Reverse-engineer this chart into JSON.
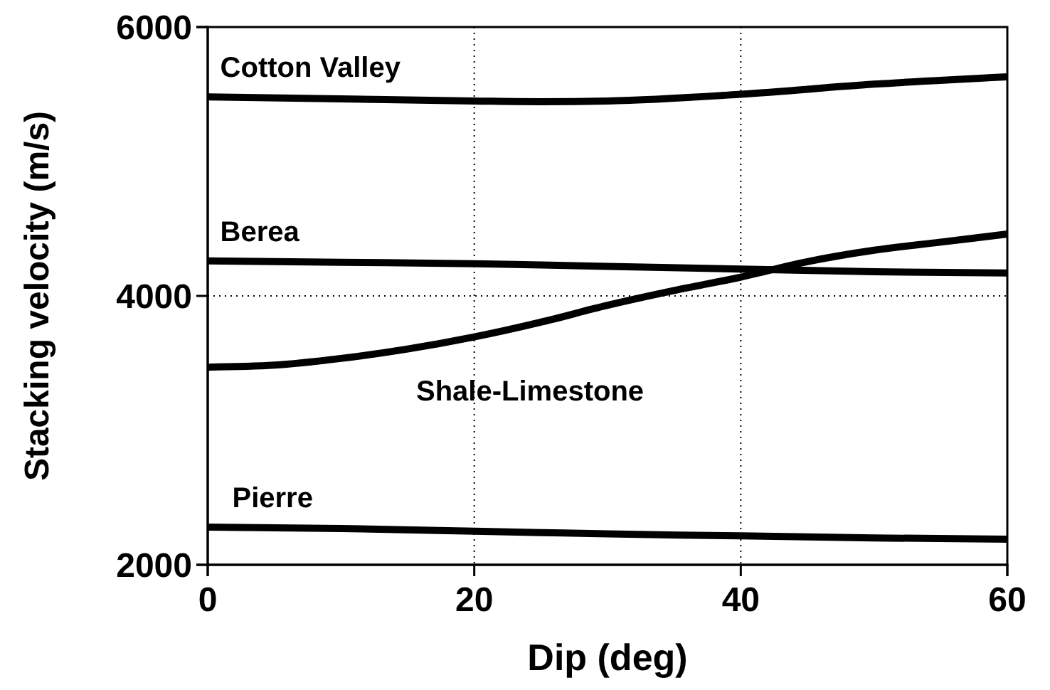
{
  "chart_data": {
    "type": "line",
    "xlabel": "Dip (deg)",
    "ylabel": "Stacking velocity (m/s)",
    "xlim": [
      0,
      60
    ],
    "xticks": [
      0,
      20,
      40,
      60
    ],
    "ylim": [
      2000,
      6000
    ],
    "yticks": [
      2000,
      4000,
      6000
    ],
    "grid": true,
    "line_style": "solid",
    "marker": "none",
    "x": [
      0,
      10,
      20,
      25,
      30,
      40,
      50,
      60
    ],
    "series": [
      {
        "name": "Cotton Valley",
        "color": "#000000",
        "values": [
          5480,
          5465,
          5450,
          5445,
          5450,
          5500,
          5575,
          5630
        ]
      },
      {
        "name": "Berea",
        "color": "#000000",
        "values": [
          4260,
          4250,
          4240,
          4230,
          4220,
          4200,
          4180,
          4170
        ]
      },
      {
        "name": "Shale-Limestone",
        "color": "#000000",
        "x": [
          0,
          5,
          10,
          15,
          20,
          25,
          30,
          35,
          40,
          45,
          50,
          55,
          60
        ],
        "values": [
          3470,
          3485,
          3535,
          3605,
          3695,
          3805,
          3930,
          4040,
          4140,
          4255,
          4340,
          4400,
          4460
        ]
      },
      {
        "name": "Pierre",
        "color": "#000000",
        "values": [
          2280,
          2270,
          2250,
          2240,
          2230,
          2215,
          2200,
          2190
        ]
      }
    ]
  }
}
